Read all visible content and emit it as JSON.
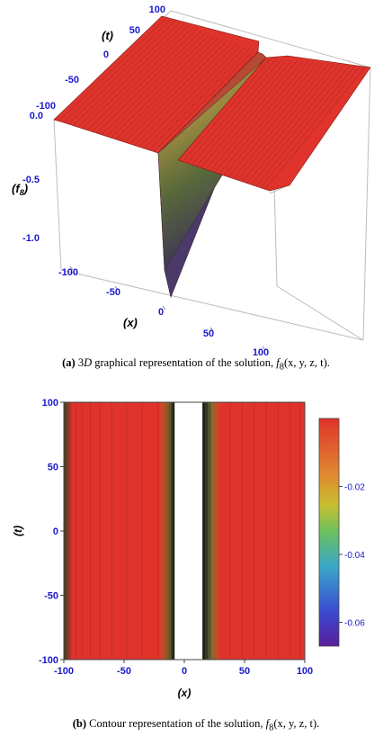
{
  "figure_a": {
    "caption_label": "(a)",
    "caption_text": "3D graphical representation of the solution, f8(x, y, z, t).",
    "caption_pre": "3",
    "caption_mid": " graphical representation of the solution, ",
    "caption_func": "f",
    "caption_sub": "8",
    "caption_args": "(x, y, z, t)."
  },
  "figure_b": {
    "caption_label": "(b)",
    "caption_text": "Contour representation of the solution, f8(x, y, z, t).",
    "caption_mid": " Contour representation of the solution, ",
    "caption_func": "f",
    "caption_sub": "8",
    "caption_args": "(x, y, z, t)."
  },
  "colors": {
    "surface": "#e0332b",
    "axis_blue": "#1a1acc",
    "contour_red": "#e0332b",
    "gap": "#ffffff"
  },
  "chart_data": [
    {
      "type": "surface3d",
      "xlabel": "(x)",
      "ylabel": "(t)",
      "zlabel": "(f8)",
      "x_ticks": [
        "-100",
        "-50",
        "0",
        "50",
        "100"
      ],
      "t_ticks": [
        "-100",
        "-50",
        "0",
        "50",
        "100"
      ],
      "z_ticks": [
        "0.0",
        "-0.5",
        "-1.0"
      ],
      "xlim": [
        -100,
        100
      ],
      "tlim": [
        -100,
        100
      ],
      "zlim": [
        -1.2,
        0.05
      ],
      "profile": {
        "x": [
          -100,
          -50,
          -20,
          -12,
          -8,
          -5,
          -3,
          0,
          3,
          5,
          8,
          12,
          20,
          50,
          100
        ],
        "f": [
          -0.01,
          -0.02,
          -0.06,
          -0.15,
          -0.4,
          -0.9,
          -1.1,
          -1.2,
          -1.1,
          -0.6,
          -0.2,
          -0.08,
          -0.04,
          -0.02,
          -0.01
        ]
      }
    },
    {
      "type": "heatmap",
      "xlabel": "(x)",
      "ylabel": "(t)",
      "x_ticks": [
        "-100",
        "-50",
        "0",
        "50",
        "100"
      ],
      "y_ticks": [
        "100",
        "50",
        "0",
        "-50",
        "-100"
      ],
      "xlim": [
        -100,
        100
      ],
      "ylim": [
        -100,
        100
      ],
      "colorbar_ticks": [
        "-0.02",
        "-0.04",
        "-0.06"
      ],
      "colorbar_range": [
        -0.067,
        0
      ],
      "blank_band_x": [
        -8,
        15
      ]
    }
  ]
}
